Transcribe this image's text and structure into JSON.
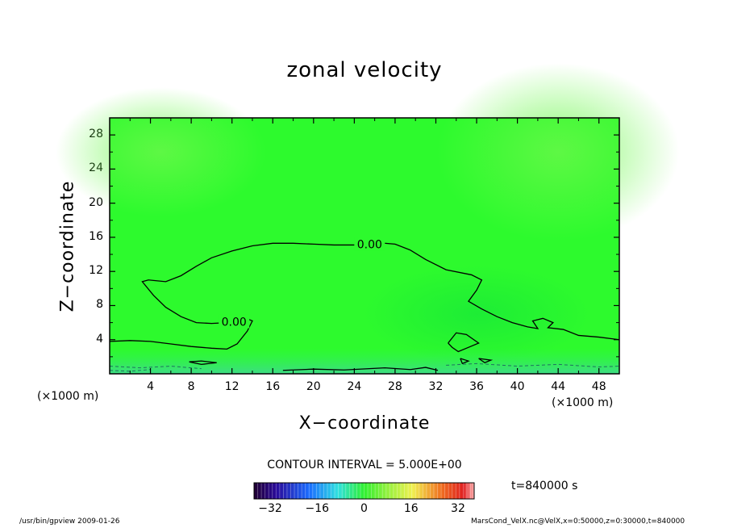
{
  "chart_data": {
    "type": "heatmap",
    "title": "zonal velocity",
    "xlabel": "X−coordinate",
    "ylabel": "Z−coordinate",
    "x_unit_label": "(×1000 m)",
    "y_unit_label": "(×1000 m)",
    "xlim": [
      0,
      50
    ],
    "ylim": [
      0,
      30
    ],
    "x_ticks": [
      "4",
      "8",
      "12",
      "16",
      "20",
      "24",
      "28",
      "32",
      "36",
      "40",
      "44",
      "48"
    ],
    "y_ticks": [
      "4",
      "8",
      "12",
      "16",
      "20",
      "24",
      "28"
    ],
    "contour_labels": [
      {
        "text": "0.00",
        "x": 25.5,
        "y": 15.2
      },
      {
        "text": "0.00",
        "x": 12.2,
        "y": 6.1
      }
    ],
    "zero_contours": [
      [
        [
          0,
          3.8
        ],
        [
          2,
          3.9
        ],
        [
          4,
          3.8
        ],
        [
          6,
          3.5
        ],
        [
          8,
          3.2
        ],
        [
          10,
          3.0
        ],
        [
          11.5,
          2.9
        ],
        [
          12.5,
          3.5
        ],
        [
          13.5,
          5.0
        ],
        [
          14,
          6.2
        ],
        [
          13.6,
          6.4
        ],
        [
          12.5,
          6.1
        ],
        [
          11.5,
          6.0
        ],
        [
          10,
          5.9
        ],
        [
          8.5,
          6.0
        ],
        [
          7,
          6.7
        ],
        [
          5.5,
          7.8
        ],
        [
          4.3,
          9.2
        ],
        [
          3.2,
          10.8
        ],
        [
          3.8,
          11.0
        ],
        [
          5.5,
          10.8
        ],
        [
          7,
          11.5
        ],
        [
          8.5,
          12.6
        ],
        [
          10,
          13.6
        ],
        [
          12,
          14.4
        ],
        [
          14,
          15.0
        ],
        [
          16,
          15.3
        ],
        [
          18,
          15.3
        ],
        [
          20,
          15.2
        ],
        [
          22,
          15.1
        ],
        [
          24,
          15.1
        ],
        [
          26,
          15.4
        ],
        [
          28,
          15.2
        ],
        [
          29.5,
          14.5
        ],
        [
          31,
          13.4
        ],
        [
          33,
          12.2
        ],
        [
          35.5,
          11.6
        ],
        [
          36.5,
          11.0
        ],
        [
          36,
          9.8
        ],
        [
          35.2,
          8.5
        ],
        [
          36.5,
          7.6
        ],
        [
          38,
          6.7
        ],
        [
          39.5,
          6.0
        ],
        [
          41,
          5.5
        ],
        [
          42,
          5.3
        ],
        [
          41.5,
          6.2
        ],
        [
          42.5,
          6.5
        ],
        [
          43.5,
          6.0
        ],
        [
          43,
          5.4
        ],
        [
          44.5,
          5.2
        ],
        [
          46,
          4.5
        ],
        [
          48,
          4.3
        ],
        [
          50,
          4.0
        ]
      ],
      [
        [
          33.2,
          3.6
        ],
        [
          34,
          4.8
        ],
        [
          35,
          4.6
        ],
        [
          36.2,
          3.6
        ],
        [
          35,
          3.0
        ],
        [
          34.2,
          2.6
        ],
        [
          33.6,
          3.1
        ],
        [
          33.2,
          3.6
        ]
      ],
      [
        [
          34.4,
          1.8
        ],
        [
          35.2,
          1.5
        ],
        [
          34.6,
          1.2
        ],
        [
          34.4,
          1.8
        ]
      ],
      [
        [
          36.2,
          1.8
        ],
        [
          37.4,
          1.6
        ],
        [
          36.8,
          1.3
        ],
        [
          36.2,
          1.8
        ]
      ],
      [
        [
          7.8,
          1.4
        ],
        [
          9,
          1.5
        ],
        [
          10.5,
          1.3
        ],
        [
          9,
          1.1
        ],
        [
          7.8,
          1.4
        ]
      ],
      [
        [
          17,
          0.4
        ],
        [
          20,
          0.55
        ],
        [
          23,
          0.45
        ],
        [
          27,
          0.7
        ],
        [
          29.5,
          0.5
        ],
        [
          31,
          0.75
        ],
        [
          32.2,
          0.4
        ]
      ]
    ],
    "colorbar": {
      "ticks": [
        "−32",
        "−16",
        "0",
        "16",
        "32"
      ],
      "range": [
        -37.5,
        37.5
      ],
      "contour_interval_text": "CONTOUR INTERVAL = 5.000E+00"
    },
    "colors": {
      "background_green": "#2dfa2d",
      "grid_green": "#5bfa3f"
    }
  },
  "annotations": {
    "time": "t=840000 s",
    "footer_left": "/usr/bin/gpview   2009-01-26",
    "footer_right": "MarsCond_VelX.nc@VelX,x=0:50000,z=0:30000,t=840000"
  }
}
